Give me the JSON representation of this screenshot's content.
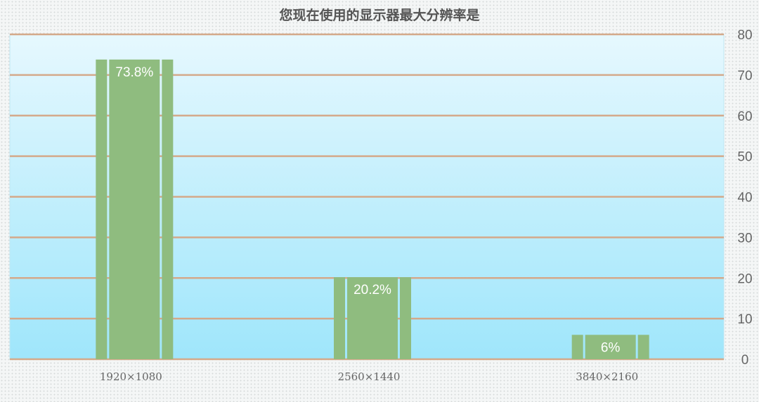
{
  "chart_data": {
    "type": "bar",
    "title": "您现在使用的显示器最大分辨率是",
    "categories": [
      "1920×1080",
      "2560×1440",
      "3840×2160"
    ],
    "values": [
      73.8,
      20.2,
      6
    ],
    "data_labels": [
      "73.8%",
      "20.2%",
      "6%"
    ],
    "ylim": [
      0,
      80
    ],
    "yticks": [
      "0",
      "10",
      "20",
      "30",
      "40",
      "50",
      "60",
      "70",
      "80"
    ],
    "y_axis_position": "right",
    "grid": true,
    "colors": {
      "bar": "#8fbc7f",
      "grid": "#d4a98a",
      "plot_top": "#e6f8fe",
      "plot_bottom": "#9fe6fb",
      "label": "#ffffff"
    }
  }
}
